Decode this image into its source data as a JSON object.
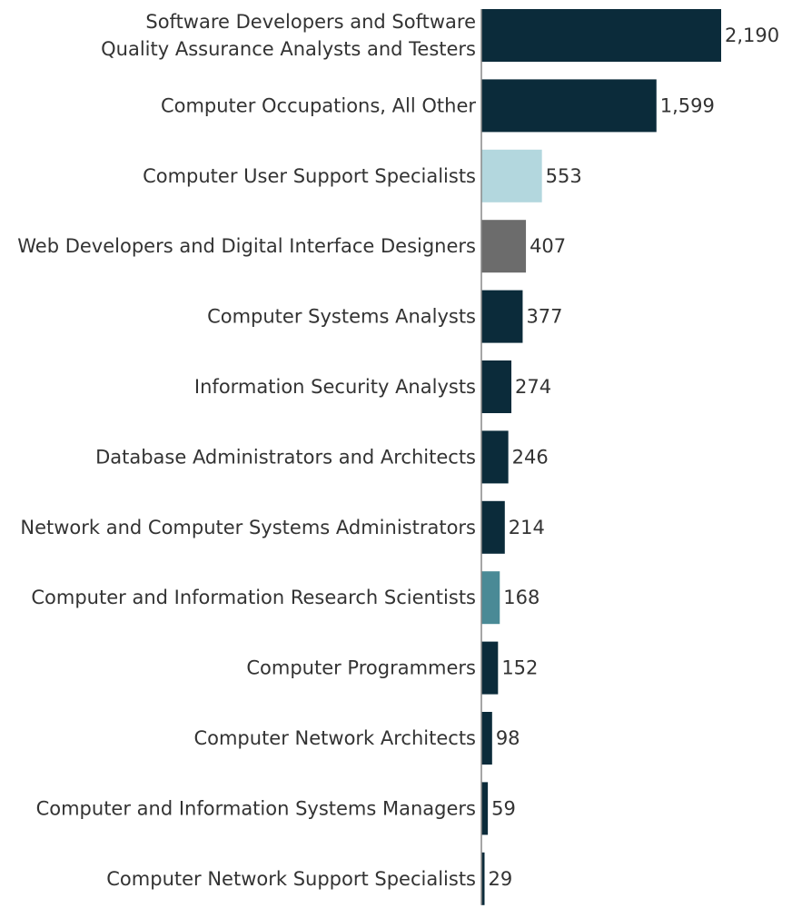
{
  "chart_data": {
    "type": "bar",
    "orientation": "horizontal",
    "title": "",
    "xlabel": "",
    "ylabel": "",
    "categories": [
      "Software Developers and Software Quality Assurance Analysts and Testers",
      "Computer Occupations, All Other",
      "Computer User Support Specialists",
      "Web Developers and Digital Interface Designers",
      "Computer Systems Analysts",
      "Information Security Analysts",
      "Database Administrators and Architects",
      "Network and Computer Systems Administrators",
      "Computer and Information Research Scientists",
      "Computer Programmers",
      "Computer Network Architects",
      "Computer and Information Systems Managers",
      "Computer Network Support Specialists"
    ],
    "values": [
      2190,
      1599,
      553,
      407,
      377,
      274,
      246,
      214,
      168,
      152,
      98,
      59,
      29
    ],
    "value_labels": [
      "2,190",
      "1,599",
      "553",
      "407",
      "377",
      "274",
      "246",
      "214",
      "168",
      "152",
      "98",
      "59",
      "29"
    ],
    "bar_colors": [
      "#0b2b3a",
      "#0b2b3a",
      "#b3d7de",
      "#6c6c6c",
      "#0b2b3a",
      "#0b2b3a",
      "#0b2b3a",
      "#0b2b3a",
      "#4a8a96",
      "#0b2b3a",
      "#0b2b3a",
      "#0b2b3a",
      "#0b2b3a"
    ],
    "xlim": [
      0,
      2190
    ],
    "grid": false,
    "legend": "none",
    "baseline_color": "#888888"
  }
}
